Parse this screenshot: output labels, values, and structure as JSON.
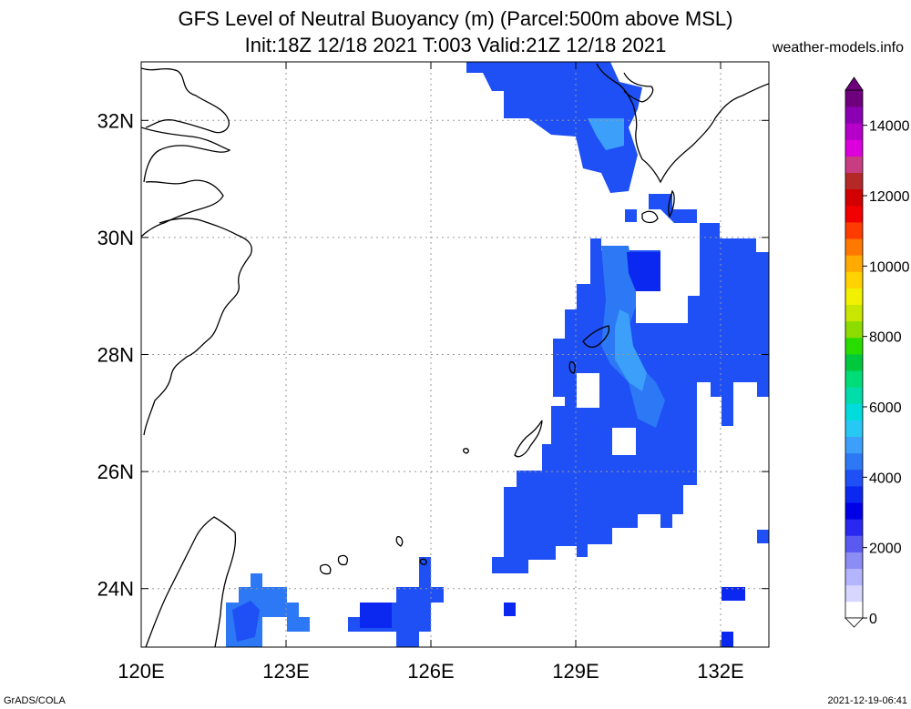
{
  "title_line1": "GFS Level of Neutral Buoyancy (m) (Parcel:500m above MSL)",
  "title_line2": "Init:18Z 12/18 2021 T:003 Valid:21Z 12/18 2021",
  "site": "weather-models.info",
  "footer_left": "GrADS/COLA",
  "footer_right": "2021-12-19-06:41",
  "map": {
    "lon_range": [
      120,
      133
    ],
    "lat_range": [
      23,
      33
    ],
    "lon_ticks": [
      {
        "value": 120,
        "label": "120E"
      },
      {
        "value": 123,
        "label": "123E"
      },
      {
        "value": 126,
        "label": "126E"
      },
      {
        "value": 129,
        "label": "129E"
      },
      {
        "value": 132,
        "label": "132E"
      }
    ],
    "lat_ticks": [
      {
        "value": 24,
        "label": "24N"
      },
      {
        "value": 26,
        "label": "26N"
      },
      {
        "value": 28,
        "label": "28N"
      },
      {
        "value": 30,
        "label": "30N"
      },
      {
        "value": 32,
        "label": "32N"
      }
    ],
    "grid": true
  },
  "colorbar": {
    "range": [
      0,
      15000
    ],
    "tick_values": [
      0,
      2000,
      4000,
      6000,
      8000,
      10000,
      12000,
      14000
    ],
    "tick_labels": [
      "0",
      "2000",
      "4000",
      "6000",
      "8000",
      "10000",
      "12000",
      "14000"
    ],
    "colors": [
      "#ffffff",
      "#d6d6ff",
      "#b4b4ff",
      "#8c8cf5",
      "#5a5af0",
      "#2828f0",
      "#0000e6",
      "#0a28f0",
      "#1e50f5",
      "#2d78f5",
      "#3ca0fa",
      "#28c8f5",
      "#00dcdc",
      "#00dcaa",
      "#00dc78",
      "#00c83c",
      "#28dc00",
      "#8cdc00",
      "#c8e600",
      "#f0f000",
      "#ffd200",
      "#ffaa00",
      "#ff7800",
      "#ff3c00",
      "#f00000",
      "#d20000",
      "#b42828",
      "#c83c82",
      "#dc00dc",
      "#b400c8",
      "#8c00b4",
      "#6e007d"
    ]
  },
  "shading": {
    "legend_colors": {
      "low": "#1e50f5",
      "mid": "#2d78f5",
      "high": "#3ca0fa"
    },
    "cells": [
      [
        129.6,
        32.8
      ],
      [
        129.9,
        32.8
      ],
      [
        127.6,
        32.7
      ],
      [
        127.9,
        32.4
      ],
      [
        128.2,
        32.1
      ],
      [
        128.5,
        32.1
      ],
      [
        128.8,
        31.8
      ],
      [
        129.6,
        31.5
      ],
      [
        129.9,
        31.5
      ],
      [
        128.5,
        31.8
      ],
      [
        129.0,
        31.7
      ],
      [
        129.2,
        31.5
      ],
      [
        129.5,
        31.2
      ],
      [
        129.8,
        31.0
      ],
      [
        130.0,
        30.8
      ],
      [
        130.2,
        30.5
      ],
      [
        130.8,
        30.6
      ],
      [
        131.1,
        30.6
      ],
      [
        130.5,
        30.1
      ],
      [
        131.7,
        30.1
      ],
      [
        132.0,
        30.0
      ],
      [
        129.3,
        29.7
      ],
      [
        129.3,
        29.3
      ],
      [
        129.0,
        29.0
      ],
      [
        128.7,
        28.7
      ],
      [
        128.4,
        28.4
      ],
      [
        128.4,
        28.0
      ],
      [
        128.4,
        27.7
      ],
      [
        128.7,
        27.3
      ],
      [
        128.7,
        27.0
      ],
      [
        128.4,
        26.7
      ],
      [
        128.1,
        26.3
      ],
      [
        127.8,
        26.0
      ],
      [
        127.5,
        25.7
      ],
      [
        127.5,
        25.3
      ],
      [
        127.5,
        25.0
      ],
      [
        127.2,
        24.7
      ],
      [
        127.5,
        24.4
      ],
      [
        131.7,
        29.7
      ],
      [
        132.0,
        29.7
      ],
      [
        132.3,
        29.7
      ],
      [
        132.6,
        29.4
      ],
      [
        132.9,
        29.4
      ],
      [
        129.2,
        23.8
      ],
      [
        125.4,
        24.5
      ],
      [
        125.7,
        23.9
      ],
      [
        126.0,
        23.9
      ],
      [
        125.2,
        23.5
      ],
      [
        124.9,
        23.5
      ],
      [
        124.6,
        23.3
      ],
      [
        124.3,
        23.3
      ],
      [
        124.0,
        23.0
      ],
      [
        125.3,
        23.0
      ],
      [
        122.2,
        24.1
      ],
      [
        121.9,
        23.8
      ],
      [
        122.2,
        23.8
      ],
      [
        122.5,
        23.8
      ],
      [
        122.8,
        23.5
      ],
      [
        123.1,
        23.5
      ],
      [
        121.9,
        23.4
      ],
      [
        122.2,
        23.4
      ],
      [
        122.5,
        23.2
      ],
      [
        123.1,
        23.2
      ],
      [
        121.9,
        23.0
      ],
      [
        122.2,
        23.0
      ],
      [
        128.0,
        23.6
      ],
      [
        132.3,
        23.9
      ],
      [
        132.1,
        23.1
      ],
      [
        132.8,
        24.8
      ]
    ]
  }
}
